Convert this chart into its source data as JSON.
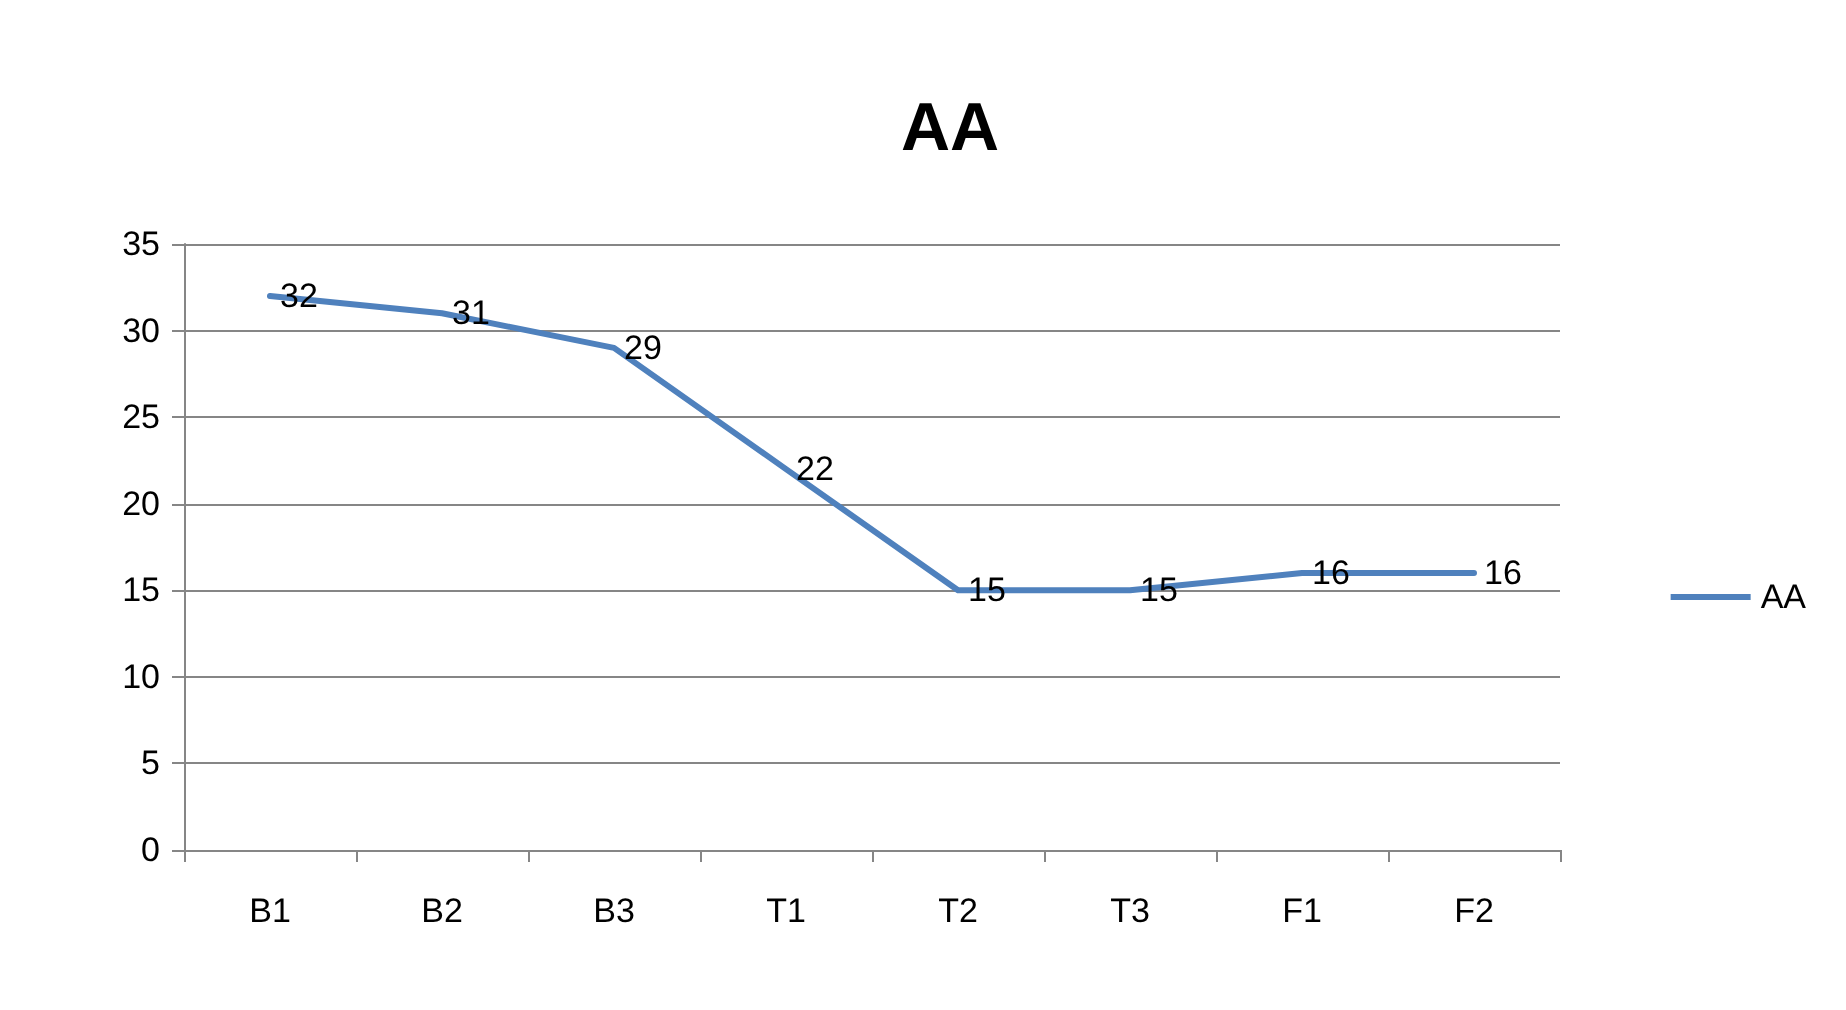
{
  "chart_data": {
    "type": "line",
    "title": "AA",
    "categories": [
      "B1",
      "B2",
      "B3",
      "T1",
      "T2",
      "T3",
      "F1",
      "F2"
    ],
    "series": [
      {
        "name": "AA",
        "color": "#4f81bd",
        "values": [
          32,
          31,
          29,
          22,
          15,
          15,
          16,
          16
        ]
      }
    ],
    "ylim": [
      0,
      35
    ],
    "yticks": [
      0,
      5,
      10,
      15,
      20,
      25,
      30,
      35
    ],
    "grid": "y",
    "legend": "right",
    "marker": "none",
    "line_style": "solid",
    "data_labels": true
  }
}
